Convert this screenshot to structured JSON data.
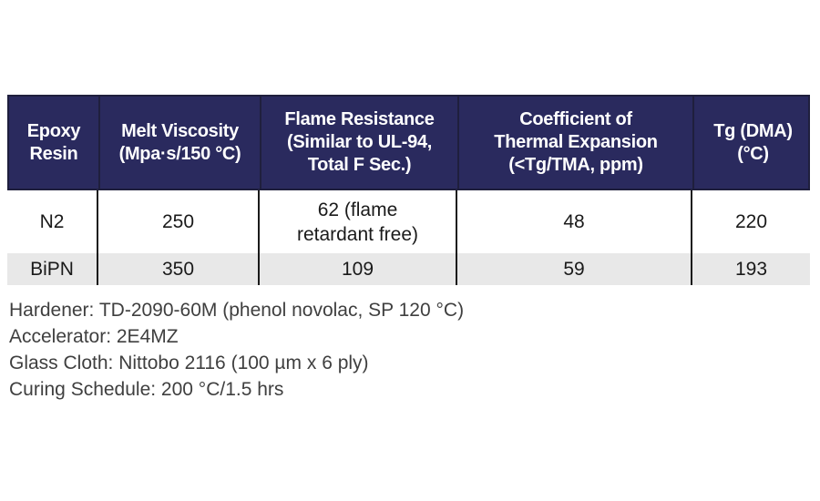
{
  "table": {
    "header_bg": "#2a2a5e",
    "header_text_color": "#ffffff",
    "alt_row_bg": "#e8e8e8",
    "divider_color": "#1a1a1a",
    "columns": [
      {
        "label": "Epoxy\nResin"
      },
      {
        "label": "Melt Viscosity\n(Mpa·s/150 °C)"
      },
      {
        "label": "Flame Resistance\n(Similar to UL-94,\nTotal F Sec.)"
      },
      {
        "label": "Coefficient of\nThermal Expansion\n(<Tg/TMA, ppm)"
      },
      {
        "label": "Tg (DMA)\n(°C)"
      }
    ],
    "rows": [
      {
        "cells": [
          "N2",
          "250",
          "62 (flame retardant free)",
          "48",
          "220"
        ]
      },
      {
        "cells": [
          "BiPN",
          "350",
          "109",
          "59",
          "193"
        ]
      }
    ]
  },
  "notes": {
    "lines": [
      "Hardener: TD-2090-60M (phenol novolac, SP 120 °C)",
      "Accelerator: 2E4MZ",
      "Glass Cloth: Nittobo 2116 (100 µm x 6 ply)",
      "Curing Schedule: 200 °C/1.5 hrs"
    ]
  }
}
